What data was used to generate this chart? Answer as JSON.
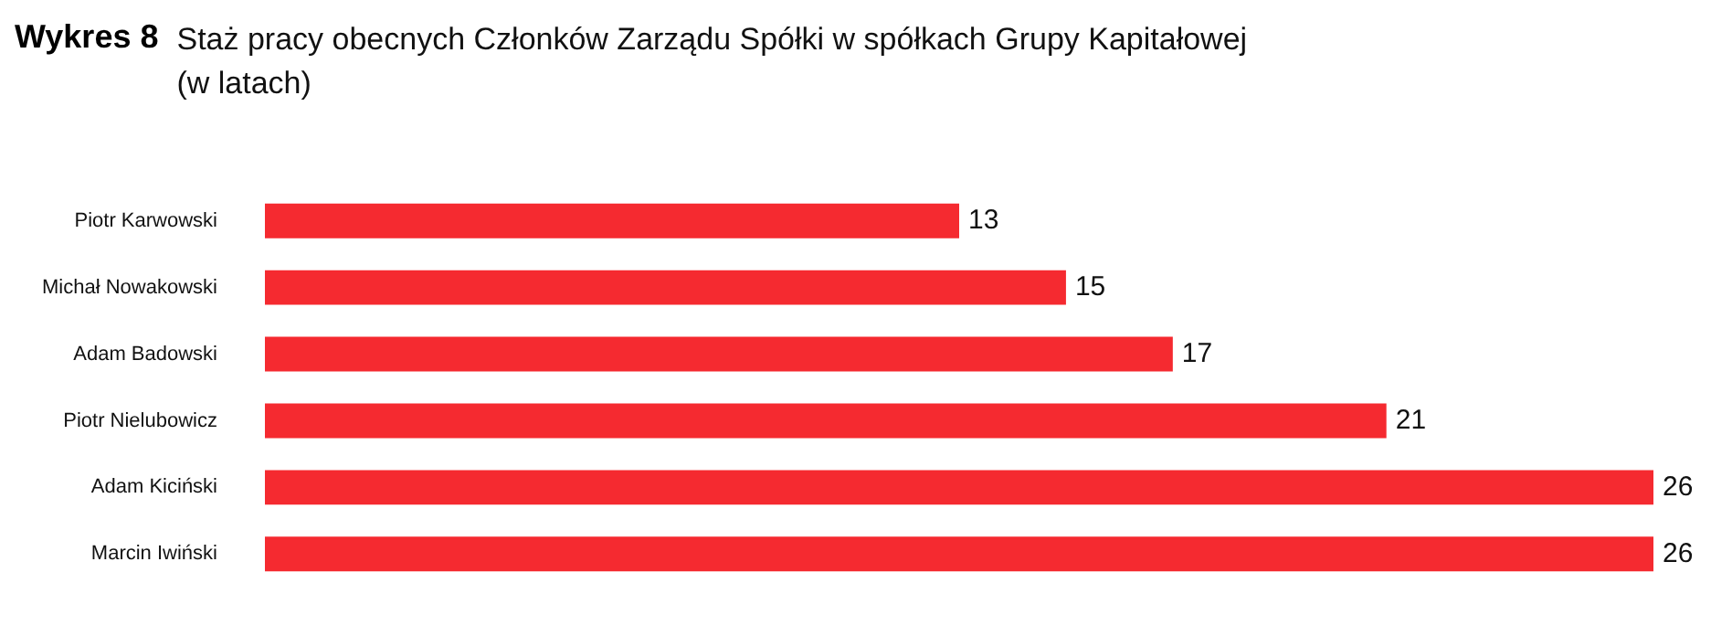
{
  "chart_data": {
    "type": "bar",
    "orientation": "horizontal",
    "title": "Wykres 8",
    "subtitle": "Staż pracy obecnych Członków Zarządu Spółki w spółkach Grupy Kapitałowej (w latach)",
    "categories": [
      "Piotr Karwowski",
      "Michał Nowakowski",
      "Adam Badowski",
      "Piotr Nielubowicz",
      "Adam Kiciński",
      "Marcin Iwiński"
    ],
    "values": [
      13,
      15,
      17,
      21,
      26,
      26
    ],
    "color": "#f52a30",
    "data_labels": true
  }
}
